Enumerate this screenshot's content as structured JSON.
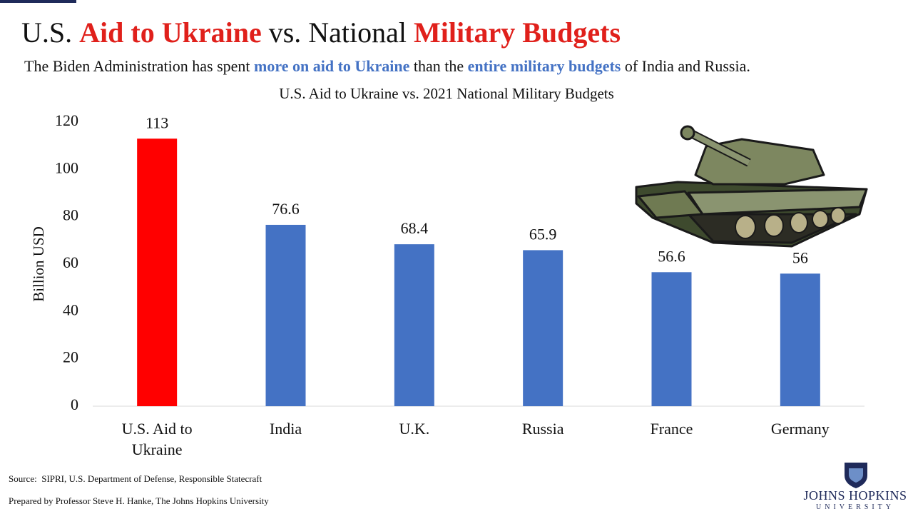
{
  "header": {
    "title_parts": [
      {
        "text": "U.S. ",
        "color": "#111111"
      },
      {
        "text": "Aid to Ukraine",
        "color": "#e0201b"
      },
      {
        "text": " vs. National ",
        "color": "#111111"
      },
      {
        "text": "Military Budgets",
        "color": "#e0201b"
      }
    ],
    "subtitle_parts": [
      {
        "text": "The Biden Administration has spent ",
        "color": "#111111"
      },
      {
        "text": "more on aid to Ukraine",
        "color": "#4472c4"
      },
      {
        "text": " than the ",
        "color": "#111111"
      },
      {
        "text": "entire military budgets",
        "color": "#4472c4"
      },
      {
        "text": " of India and Russia.",
        "color": "#111111"
      }
    ]
  },
  "chart_data": {
    "type": "bar",
    "title": "U.S. Aid to Ukraine vs. 2021 National Military Budgets",
    "y_label": "Billion USD",
    "categories": [
      "U.S. Aid to Ukraine",
      "India",
      "U.K.",
      "Russia",
      "France",
      "Germany"
    ],
    "values": [
      113,
      76.6,
      68.4,
      65.9,
      56.6,
      56
    ],
    "colors": [
      "#ff0000",
      "#4472c4",
      "#4472c4",
      "#4472c4",
      "#4472c4",
      "#4472c4"
    ],
    "ylim": [
      0,
      120
    ],
    "yticks": [
      0,
      20,
      40,
      60,
      80,
      100,
      120
    ],
    "grid": false
  },
  "footer": {
    "source": "Source:  SIPRI, U.S. Department of Defense, Responsible Statecraft",
    "prepared_by": "Prepared by Professor Steve H. Hanke, The Johns Hopkins University",
    "logo_name": "JOHNS HOPKINS",
    "logo_sub": "UNIVERSITY"
  }
}
